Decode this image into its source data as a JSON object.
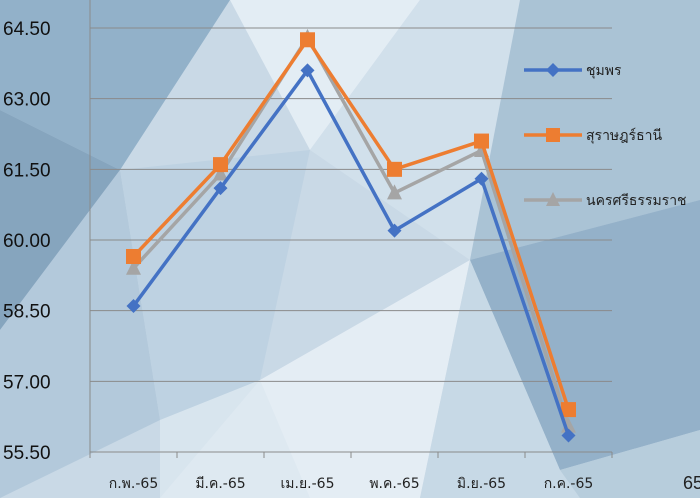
{
  "chart_data": {
    "type": "line",
    "title": "",
    "xlabel": "",
    "ylabel": "",
    "categories": [
      "ก.พ.-65",
      "มี.ค.-65",
      "เม.ย.-65",
      "พ.ค.-65",
      "มิ.ย.-65",
      "ก.ค.-65"
    ],
    "ylim": [
      55.5,
      64.5
    ],
    "yticks": [
      "55.50",
      "57.00",
      "58.50",
      "60.00",
      "61.50",
      "63.00",
      "64.50"
    ],
    "grid": true,
    "legend_position": "right",
    "series": [
      {
        "name": "ชุมพร",
        "color": "#4472C4",
        "marker": "diamond",
        "values": [
          58.6,
          61.1,
          63.6,
          60.2,
          61.3,
          55.85
        ]
      },
      {
        "name": "สุราษฎร์ธานี",
        "color": "#ED7D31",
        "marker": "square",
        "values": [
          59.65,
          61.6,
          64.25,
          61.5,
          62.1,
          56.4
        ]
      },
      {
        "name": "นครศรีธรรมราช",
        "color": "#A5A5A5",
        "marker": "triangle",
        "values": [
          59.4,
          61.4,
          64.3,
          61.0,
          61.9,
          56.05
        ]
      }
    ]
  },
  "corner_text": "65"
}
